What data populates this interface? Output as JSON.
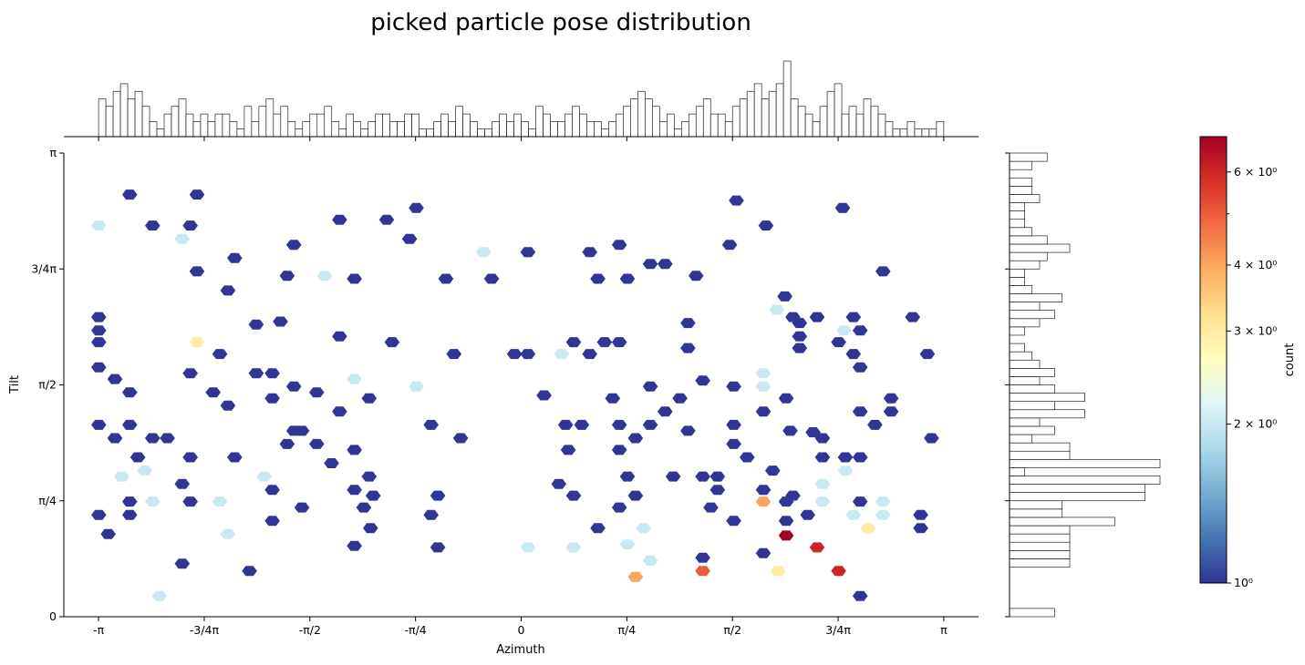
{
  "chart_data": {
    "type": "heatmap",
    "subtype": "hexbin_with_marginal_histograms",
    "title": "picked particle pose distribution",
    "xlabel": "Azimuth",
    "ylabel": "Tilt",
    "colorbar_label": "count",
    "xlim": [
      -3.4,
      3.4
    ],
    "ylim": [
      0,
      3.1416
    ],
    "x_ticks": [
      {
        "value": -3.1416,
        "label": "-π"
      },
      {
        "value": -2.3562,
        "label": "-3/4π"
      },
      {
        "value": -1.5708,
        "label": "-π/2"
      },
      {
        "value": -0.7854,
        "label": "-π/4"
      },
      {
        "value": 0,
        "label": "0"
      },
      {
        "value": 0.7854,
        "label": "π/4"
      },
      {
        "value": 1.5708,
        "label": "π/2"
      },
      {
        "value": 2.3562,
        "label": "3/4π"
      },
      {
        "value": 3.1416,
        "label": "π"
      }
    ],
    "y_ticks": [
      {
        "value": 0,
        "label": "0"
      },
      {
        "value": 0.7854,
        "label": "π/4"
      },
      {
        "value": 1.5708,
        "label": "π/2"
      },
      {
        "value": 2.3562,
        "label": "3/4π"
      },
      {
        "value": 3.1416,
        "label": "π"
      }
    ],
    "colorbar": {
      "scale": "log",
      "range": [
        1,
        7
      ],
      "colormap": "RdYlBu_r",
      "ticks": [
        {
          "value": 1,
          "label": "10⁰"
        },
        {
          "value": 2,
          "label": "2 × 10⁰"
        },
        {
          "value": 3,
          "label": "3 × 10⁰"
        },
        {
          "value": 4,
          "label": "4 × 10⁰"
        },
        {
          "value": 6,
          "label": "6 × 10⁰"
        }
      ],
      "minor_ticks": [
        5
      ]
    },
    "hexbins": [
      [
        -2.91,
        2.86,
        1
      ],
      [
        -2.41,
        2.86,
        1
      ],
      [
        1.6,
        2.82,
        1
      ],
      [
        2.39,
        2.77,
        1
      ],
      [
        -0.78,
        2.77,
        1
      ],
      [
        -1.35,
        2.69,
        1
      ],
      [
        -1.0,
        2.69,
        1
      ],
      [
        -3.14,
        2.65,
        2
      ],
      [
        -2.74,
        2.65,
        1
      ],
      [
        -2.46,
        2.65,
        1
      ],
      [
        1.82,
        2.65,
        1
      ],
      [
        -2.52,
        2.56,
        2
      ],
      [
        -0.83,
        2.56,
        1
      ],
      [
        -1.69,
        2.52,
        1
      ],
      [
        0.73,
        2.52,
        1
      ],
      [
        1.55,
        2.52,
        1
      ],
      [
        -0.28,
        2.47,
        2
      ],
      [
        0.05,
        2.47,
        1
      ],
      [
        0.51,
        2.47,
        1
      ],
      [
        -2.13,
        2.43,
        1
      ],
      [
        0.96,
        2.39,
        1
      ],
      [
        1.07,
        2.39,
        1
      ],
      [
        -2.41,
        2.34,
        1
      ],
      [
        -1.74,
        2.31,
        1
      ],
      [
        -1.46,
        2.31,
        2
      ],
      [
        -1.24,
        2.29,
        1
      ],
      [
        -0.56,
        2.29,
        1
      ],
      [
        -0.22,
        2.29,
        1
      ],
      [
        0.57,
        2.29,
        1
      ],
      [
        0.79,
        2.29,
        1
      ],
      [
        2.69,
        2.34,
        1
      ],
      [
        1.3,
        2.31,
        1
      ],
      [
        -2.18,
        2.21,
        1
      ],
      [
        1.96,
        2.17,
        1
      ],
      [
        1.9,
        2.08,
        2
      ],
      [
        -3.14,
        2.03,
        1
      ],
      [
        -1.97,
        1.98,
        1
      ],
      [
        -1.79,
        2.0,
        1
      ],
      [
        -3.14,
        1.94,
        1
      ],
      [
        1.24,
        1.99,
        1
      ],
      [
        2.07,
        1.99,
        1
      ],
      [
        2.52,
        1.94,
        1
      ],
      [
        2.02,
        2.03,
        1
      ],
      [
        2.2,
        2.03,
        1
      ],
      [
        2.47,
        2.03,
        1
      ],
      [
        2.91,
        2.03,
        1
      ],
      [
        2.4,
        1.94,
        2
      ],
      [
        -3.14,
        1.86,
        1
      ],
      [
        -2.41,
        1.86,
        3
      ],
      [
        -1.35,
        1.9,
        1
      ],
      [
        -0.96,
        1.86,
        1
      ],
      [
        0.39,
        1.86,
        1
      ],
      [
        0.62,
        1.86,
        1
      ],
      [
        0.73,
        1.86,
        1
      ],
      [
        2.07,
        1.9,
        1
      ],
      [
        2.07,
        1.82,
        1
      ],
      [
        2.36,
        1.86,
        1
      ],
      [
        2.47,
        1.78,
        1
      ],
      [
        1.24,
        1.82,
        1
      ],
      [
        -2.24,
        1.78,
        1
      ],
      [
        -0.5,
        1.78,
        1
      ],
      [
        -0.05,
        1.78,
        1
      ],
      [
        0.05,
        1.78,
        1
      ],
      [
        0.3,
        1.78,
        2
      ],
      [
        0.51,
        1.78,
        1
      ],
      [
        3.02,
        1.78,
        1
      ],
      [
        -3.14,
        1.69,
        1
      ],
      [
        -2.46,
        1.65,
        1
      ],
      [
        -1.97,
        1.65,
        1
      ],
      [
        -1.85,
        1.65,
        1
      ],
      [
        -3.02,
        1.61,
        1
      ],
      [
        -1.24,
        1.61,
        2
      ],
      [
        -0.78,
        1.56,
        2
      ],
      [
        1.8,
        1.65,
        2
      ],
      [
        2.52,
        1.69,
        1
      ],
      [
        1.35,
        1.6,
        1
      ],
      [
        1.8,
        1.56,
        2
      ],
      [
        -2.91,
        1.52,
        1
      ],
      [
        -2.29,
        1.52,
        1
      ],
      [
        -1.85,
        1.48,
        1
      ],
      [
        -1.69,
        1.56,
        1
      ],
      [
        -1.52,
        1.52,
        1
      ],
      [
        -1.13,
        1.48,
        1
      ],
      [
        0.17,
        1.5,
        1
      ],
      [
        0.68,
        1.48,
        1
      ],
      [
        0.96,
        1.56,
        1
      ],
      [
        1.18,
        1.48,
        1
      ],
      [
        1.58,
        1.56,
        1
      ],
      [
        1.97,
        1.48,
        1
      ],
      [
        2.75,
        1.48,
        1
      ],
      [
        -2.18,
        1.43,
        1
      ],
      [
        -1.35,
        1.39,
        1
      ],
      [
        1.07,
        1.39,
        1
      ],
      [
        1.8,
        1.39,
        1
      ],
      [
        2.52,
        1.39,
        1
      ],
      [
        2.75,
        1.39,
        1
      ],
      [
        -3.14,
        1.3,
        1
      ],
      [
        -2.91,
        1.3,
        1
      ],
      [
        -0.67,
        1.3,
        1
      ],
      [
        0.33,
        1.3,
        1
      ],
      [
        0.45,
        1.3,
        1
      ],
      [
        0.73,
        1.3,
        1
      ],
      [
        0.96,
        1.3,
        1
      ],
      [
        1.24,
        1.26,
        1
      ],
      [
        1.58,
        1.3,
        1
      ],
      [
        2.17,
        1.25,
        1
      ],
      [
        2.63,
        1.3,
        1
      ],
      [
        -3.02,
        1.21,
        1
      ],
      [
        -2.74,
        1.21,
        1
      ],
      [
        -2.63,
        1.21,
        1
      ],
      [
        -1.69,
        1.26,
        1
      ],
      [
        -1.63,
        1.26,
        1
      ],
      [
        -1.74,
        1.17,
        1
      ],
      [
        -1.52,
        1.17,
        1
      ],
      [
        -1.24,
        1.13,
        1
      ],
      [
        -0.45,
        1.21,
        1
      ],
      [
        0.85,
        1.21,
        1
      ],
      [
        1.58,
        1.17,
        1
      ],
      [
        2.0,
        1.26,
        1
      ],
      [
        2.24,
        1.21,
        1
      ],
      [
        3.05,
        1.21,
        1
      ],
      [
        -2.85,
        1.08,
        1
      ],
      [
        -2.46,
        1.08,
        1
      ],
      [
        -2.13,
        1.08,
        1
      ],
      [
        -1.41,
        1.04,
        1
      ],
      [
        0.35,
        1.13,
        1
      ],
      [
        0.73,
        1.13,
        1
      ],
      [
        1.68,
        1.08,
        1
      ],
      [
        2.24,
        1.08,
        1
      ],
      [
        2.41,
        1.08,
        1
      ],
      [
        2.52,
        1.08,
        1
      ],
      [
        -2.8,
        0.99,
        2
      ],
      [
        2.41,
        0.99,
        2
      ],
      [
        1.87,
        0.99,
        1
      ],
      [
        -2.97,
        0.95,
        2
      ],
      [
        -1.91,
        0.95,
        2
      ],
      [
        -1.13,
        0.95,
        1
      ],
      [
        -2.52,
        0.9,
        1
      ],
      [
        0.28,
        0.9,
        1
      ],
      [
        0.79,
        0.95,
        1
      ],
      [
        1.13,
        0.95,
        1
      ],
      [
        1.35,
        0.95,
        1
      ],
      [
        1.46,
        0.95,
        1
      ],
      [
        2.24,
        0.9,
        2
      ],
      [
        -1.85,
        0.86,
        1
      ],
      [
        -1.24,
        0.86,
        1
      ],
      [
        -1.1,
        0.82,
        1
      ],
      [
        -0.62,
        0.82,
        1
      ],
      [
        0.39,
        0.82,
        1
      ],
      [
        1.46,
        0.86,
        1
      ],
      [
        1.8,
        0.86,
        1
      ],
      [
        0.85,
        0.82,
        1
      ],
      [
        2.02,
        0.82,
        1
      ],
      [
        -2.91,
        0.78,
        1
      ],
      [
        -2.74,
        0.78,
        2
      ],
      [
        -2.46,
        0.78,
        1
      ],
      [
        -2.24,
        0.78,
        2
      ],
      [
        1.8,
        0.78,
        4
      ],
      [
        1.97,
        0.78,
        1
      ],
      [
        2.24,
        0.78,
        2
      ],
      [
        2.52,
        0.78,
        1
      ],
      [
        2.69,
        0.78,
        2
      ],
      [
        -1.63,
        0.74,
        1
      ],
      [
        -1.17,
        0.74,
        1
      ],
      [
        0.73,
        0.74,
        1
      ],
      [
        1.41,
        0.74,
        1
      ],
      [
        -3.14,
        0.69,
        1
      ],
      [
        -2.91,
        0.69,
        1
      ],
      [
        -0.67,
        0.69,
        1
      ],
      [
        2.13,
        0.69,
        1
      ],
      [
        2.47,
        0.69,
        2
      ],
      [
        2.69,
        0.69,
        2
      ],
      [
        2.97,
        0.69,
        1
      ],
      [
        -1.85,
        0.65,
        1
      ],
      [
        1.58,
        0.65,
        1
      ],
      [
        1.97,
        0.65,
        1
      ],
      [
        -1.12,
        0.6,
        1
      ],
      [
        0.57,
        0.6,
        1
      ],
      [
        0.91,
        0.6,
        2
      ],
      [
        2.58,
        0.6,
        3
      ],
      [
        2.97,
        0.6,
        1
      ],
      [
        -3.07,
        0.56,
        1
      ],
      [
        -2.18,
        0.56,
        2
      ],
      [
        1.97,
        0.55,
        7
      ],
      [
        -1.24,
        0.48,
        1
      ],
      [
        -0.62,
        0.47,
        1
      ],
      [
        0.05,
        0.47,
        2
      ],
      [
        0.39,
        0.47,
        2
      ],
      [
        0.79,
        0.49,
        2
      ],
      [
        2.2,
        0.47,
        6
      ],
      [
        -2.52,
        0.36,
        1
      ],
      [
        1.35,
        0.4,
        1
      ],
      [
        0.96,
        0.38,
        2
      ],
      [
        1.8,
        0.43,
        1
      ],
      [
        -2.02,
        0.31,
        1
      ],
      [
        0.85,
        0.27,
        4
      ],
      [
        1.35,
        0.31,
        5
      ],
      [
        1.91,
        0.31,
        3
      ],
      [
        2.36,
        0.31,
        6
      ],
      [
        -2.69,
        0.14,
        2
      ],
      [
        2.52,
        0.14,
        1
      ]
    ],
    "top_histogram": {
      "xlabel": "Azimuth",
      "bins": 116,
      "counts": [
        5,
        4,
        6,
        7,
        5,
        6,
        4,
        2,
        1,
        3,
        4,
        5,
        3,
        2,
        3,
        2,
        3,
        3,
        2,
        1,
        4,
        2,
        4,
        5,
        3,
        4,
        2,
        1,
        2,
        3,
        3,
        4,
        2,
        1,
        3,
        2,
        1,
        2,
        3,
        3,
        2,
        2,
        3,
        3,
        1,
        1,
        2,
        3,
        2,
        4,
        3,
        2,
        1,
        1,
        2,
        3,
        2,
        3,
        2,
        1,
        4,
        3,
        2,
        2,
        3,
        4,
        3,
        2,
        2,
        1,
        2,
        3,
        4,
        5,
        6,
        5,
        4,
        2,
        3,
        1,
        2,
        3,
        4,
        5,
        3,
        3,
        2,
        4,
        5,
        6,
        7,
        5,
        6,
        7,
        10,
        5,
        4,
        3,
        2,
        4,
        6,
        7,
        3,
        4,
        3,
        5,
        4,
        3,
        2,
        1,
        1,
        2,
        1,
        1,
        1,
        2
      ],
      "range": [
        -3.1416,
        3.1416
      ]
    },
    "right_histogram": {
      "ylabel": "Tilt",
      "bins": 56,
      "counts": [
        6,
        0,
        0,
        0,
        0,
        0,
        8,
        8,
        8,
        8,
        8,
        14,
        7,
        7,
        18,
        18,
        20,
        2,
        20,
        8,
        8,
        3,
        6,
        4,
        10,
        6,
        10,
        6,
        4,
        6,
        4,
        3,
        2,
        0,
        2,
        4,
        6,
        4,
        7,
        3,
        2,
        2,
        4,
        5,
        8,
        5,
        3,
        2,
        2,
        2,
        4,
        3,
        3,
        0,
        3,
        5
      ]
    }
  }
}
